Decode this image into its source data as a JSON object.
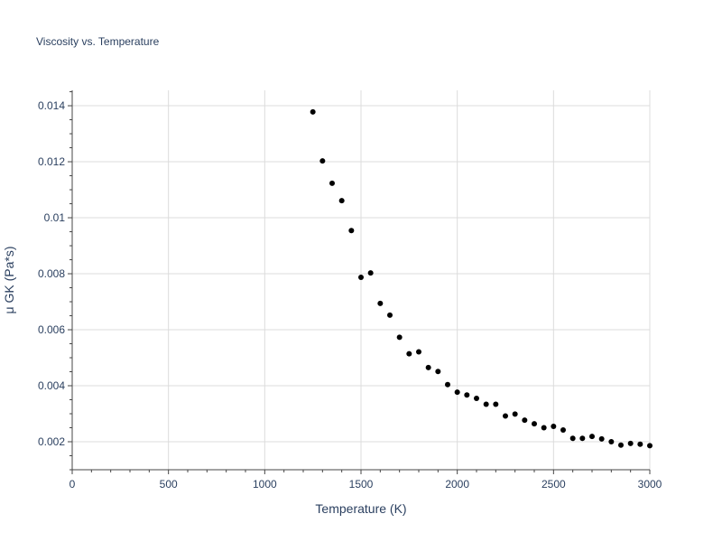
{
  "chart_data": {
    "type": "scatter",
    "title": "Viscosity vs. Temperature",
    "xlabel": "Temperature (K)",
    "ylabel": "μ GK (Pa*s)",
    "xlim": [
      0,
      3000
    ],
    "ylim": [
      0.001,
      0.01455
    ],
    "x_ticks": [
      0,
      500,
      1000,
      1500,
      2000,
      2500,
      3000
    ],
    "x_tick_labels": [
      "0",
      "500",
      "1000",
      "1500",
      "2000",
      "2500",
      "3000"
    ],
    "y_ticks": [
      0.002,
      0.004,
      0.006,
      0.008,
      0.01,
      0.012,
      0.014
    ],
    "y_tick_labels": [
      "0.002",
      "0.004",
      "0.006",
      "0.008",
      "0.01",
      "0.012",
      "0.014"
    ],
    "grid": true,
    "marker_color": "#000000",
    "grid_color": "#dcdcdc",
    "text_color": "#2a3f5f",
    "series": [
      {
        "name": "μ GK",
        "x": [
          1250,
          1300,
          1350,
          1400,
          1450,
          1500,
          1550,
          1600,
          1650,
          1700,
          1750,
          1800,
          1850,
          1900,
          1950,
          2000,
          2050,
          2100,
          2150,
          2200,
          2250,
          2300,
          2350,
          2400,
          2450,
          2500,
          2550,
          2600,
          2650,
          2700,
          2750,
          2800,
          2850,
          2900,
          2950,
          3000
        ],
        "y": [
          0.01378,
          0.01203,
          0.01123,
          0.01061,
          0.00954,
          0.00787,
          0.00803,
          0.00694,
          0.00652,
          0.00573,
          0.00514,
          0.00521,
          0.00465,
          0.00451,
          0.00404,
          0.00377,
          0.00367,
          0.00355,
          0.00334,
          0.00334,
          0.00292,
          0.00299,
          0.00277,
          0.00264,
          0.0025,
          0.00255,
          0.00242,
          0.00212,
          0.00212,
          0.00219,
          0.0021,
          0.002,
          0.00188,
          0.00194,
          0.00191,
          0.00186
        ]
      }
    ]
  }
}
